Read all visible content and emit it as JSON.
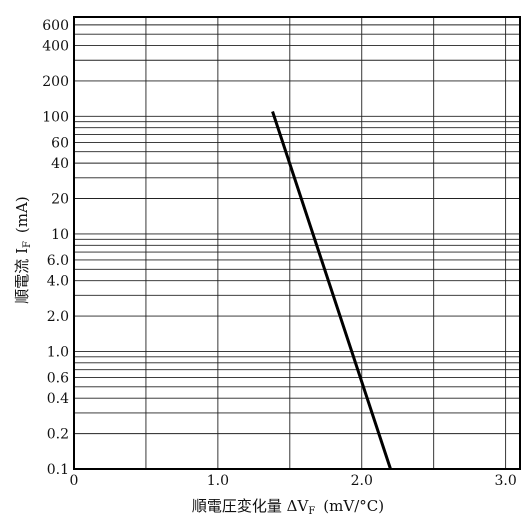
{
  "chart_data": {
    "type": "line",
    "xlabel": "順電圧変化量 ΔV",
    "xlabel_subscript": "F",
    "xlabel_unit": "(mV/°C)",
    "ylabel": "順電流 I",
    "ylabel_subscript": "F",
    "ylabel_unit": "(mA)",
    "xlim": [
      0,
      3.1
    ],
    "ylim": [
      0.1,
      700
    ],
    "y_scale": "log",
    "grid": true,
    "x_ticks": [
      {
        "value": 0,
        "label": "0"
      },
      {
        "value": 1.0,
        "label": "1.0"
      },
      {
        "value": 2.0,
        "label": "2.0"
      },
      {
        "value": 3.0,
        "label": "3.0"
      }
    ],
    "y_ticks": [
      {
        "value": 0.1,
        "label": "0.1"
      },
      {
        "value": 0.2,
        "label": "0.2"
      },
      {
        "value": 0.4,
        "label": "0.4"
      },
      {
        "value": 0.6,
        "label": "0.6"
      },
      {
        "value": 1.0,
        "label": "1.0"
      },
      {
        "value": 2.0,
        "label": "2.0"
      },
      {
        "value": 4.0,
        "label": "4.0"
      },
      {
        "value": 6.0,
        "label": "6.0"
      },
      {
        "value": 10,
        "label": "10"
      },
      {
        "value": 20,
        "label": "20"
      },
      {
        "value": 40,
        "label": "40"
      },
      {
        "value": 60,
        "label": "60"
      },
      {
        "value": 100,
        "label": "100"
      },
      {
        "value": 200,
        "label": "200"
      },
      {
        "value": 400,
        "label": "400"
      },
      {
        "value": 600,
        "label": "600"
      }
    ],
    "y_gridlines": [
      0.1,
      0.2,
      0.3,
      0.4,
      0.5,
      0.6,
      0.7,
      0.8,
      0.9,
      1,
      2,
      3,
      4,
      5,
      6,
      7,
      8,
      9,
      10,
      20,
      30,
      40,
      50,
      60,
      70,
      80,
      90,
      100,
      200,
      300,
      400,
      500,
      600,
      700
    ],
    "x_gridlines": [
      0.5,
      1.0,
      1.5,
      2.0,
      2.5,
      3.0
    ],
    "series": [
      {
        "x": [
          1.38,
          2.2
        ],
        "y": [
          110,
          0.1
        ],
        "color": "#000000"
      }
    ]
  }
}
